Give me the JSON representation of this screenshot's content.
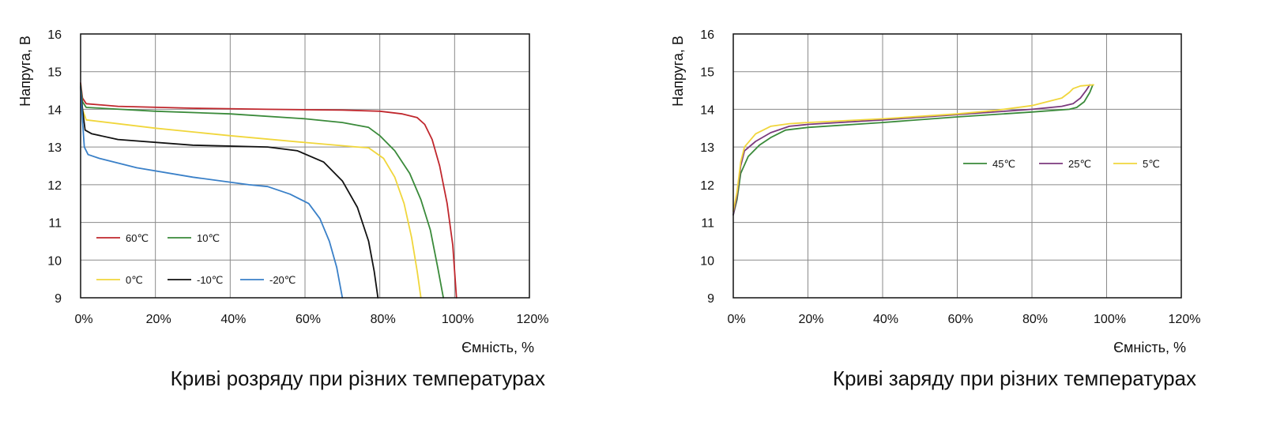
{
  "chart_data": [
    {
      "type": "line",
      "title": "Криві розряду при різних температурах",
      "xlabel": "Ємність, %",
      "ylabel": "Напруга, В",
      "xlim": [
        0,
        120
      ],
      "ylim": [
        9,
        16
      ],
      "x_ticks": [
        "0%",
        "20%",
        "40%",
        "60%",
        "80%",
        "100%",
        "120%"
      ],
      "y_ticks": [
        "9",
        "10",
        "11",
        "12",
        "13",
        "14",
        "15",
        "16"
      ],
      "grid": true,
      "legend": "bottom-left",
      "series": [
        {
          "name": "60℃",
          "color": "#c0272d",
          "points": [
            [
              0,
              14.7
            ],
            [
              0.5,
              14.3
            ],
            [
              1.5,
              14.15
            ],
            [
              10,
              14.08
            ],
            [
              30,
              14.03
            ],
            [
              50,
              14.0
            ],
            [
              70,
              13.98
            ],
            [
              80,
              13.95
            ],
            [
              86,
              13.88
            ],
            [
              90,
              13.78
            ],
            [
              92,
              13.6
            ],
            [
              94,
              13.2
            ],
            [
              96,
              12.5
            ],
            [
              98,
              11.5
            ],
            [
              99.5,
              10.4
            ],
            [
              100.5,
              9.0
            ]
          ]
        },
        {
          "name": "10℃",
          "color": "#3a8a3a",
          "points": [
            [
              0,
              14.65
            ],
            [
              0.5,
              14.2
            ],
            [
              1.5,
              14.05
            ],
            [
              20,
              13.95
            ],
            [
              40,
              13.88
            ],
            [
              60,
              13.75
            ],
            [
              70,
              13.65
            ],
            [
              77,
              13.52
            ],
            [
              80,
              13.3
            ],
            [
              84,
              12.9
            ],
            [
              88,
              12.3
            ],
            [
              91,
              11.6
            ],
            [
              93.5,
              10.8
            ],
            [
              95.5,
              9.8
            ],
            [
              97,
              9.0
            ]
          ]
        },
        {
          "name": "0℃",
          "color": "#f0d63c",
          "points": [
            [
              0,
              14.6
            ],
            [
              0.5,
              14.0
            ],
            [
              1.5,
              13.72
            ],
            [
              20,
              13.5
            ],
            [
              40,
              13.3
            ],
            [
              60,
              13.12
            ],
            [
              74,
              13.0
            ],
            [
              77,
              12.98
            ],
            [
              81,
              12.7
            ],
            [
              84,
              12.2
            ],
            [
              86.5,
              11.5
            ],
            [
              88.5,
              10.6
            ],
            [
              90,
              9.7
            ],
            [
              91,
              9.0
            ]
          ]
        },
        {
          "name": "-10℃",
          "color": "#111111",
          "points": [
            [
              0,
              14.6
            ],
            [
              0.5,
              14.0
            ],
            [
              1.2,
              13.45
            ],
            [
              3,
              13.35
            ],
            [
              10,
              13.2
            ],
            [
              30,
              13.05
            ],
            [
              50,
              13.0
            ],
            [
              58,
              12.9
            ],
            [
              65,
              12.6
            ],
            [
              70,
              12.1
            ],
            [
              74,
              11.4
            ],
            [
              77,
              10.5
            ],
            [
              78.5,
              9.7
            ],
            [
              79.5,
              9.0
            ]
          ]
        },
        {
          "name": "-20℃",
          "color": "#3a80c8",
          "points": [
            [
              0,
              14.6
            ],
            [
              0.5,
              13.7
            ],
            [
              1,
              13.0
            ],
            [
              2,
              12.8
            ],
            [
              5,
              12.7
            ],
            [
              15,
              12.45
            ],
            [
              30,
              12.2
            ],
            [
              45,
              12.0
            ],
            [
              50,
              11.95
            ],
            [
              56,
              11.75
            ],
            [
              61,
              11.5
            ],
            [
              64,
              11.1
            ],
            [
              66.5,
              10.5
            ],
            [
              68.5,
              9.8
            ],
            [
              70,
              9.0
            ]
          ]
        }
      ]
    },
    {
      "type": "line",
      "title": "Криві заряду при різних температурах",
      "xlabel": "Ємність, %",
      "ylabel": "Напруга, В",
      "xlim": [
        0,
        120
      ],
      "ylim": [
        9,
        16
      ],
      "x_ticks": [
        "0%",
        "20%",
        "40%",
        "60%",
        "80%",
        "100%",
        "120%"
      ],
      "y_ticks": [
        "9",
        "10",
        "11",
        "12",
        "13",
        "14",
        "15",
        "16"
      ],
      "grid": true,
      "legend": "center-right",
      "series": [
        {
          "name": "45℃",
          "color": "#3a8a3a",
          "points": [
            [
              0,
              11.2
            ],
            [
              1,
              11.6
            ],
            [
              2,
              12.3
            ],
            [
              4,
              12.75
            ],
            [
              7,
              13.05
            ],
            [
              10,
              13.25
            ],
            [
              14,
              13.45
            ],
            [
              20,
              13.52
            ],
            [
              40,
              13.65
            ],
            [
              60,
              13.8
            ],
            [
              80,
              13.93
            ],
            [
              90,
              14.0
            ],
            [
              92,
              14.05
            ],
            [
              94,
              14.2
            ],
            [
              95.5,
              14.45
            ],
            [
              96.3,
              14.65
            ]
          ]
        },
        {
          "name": "25℃",
          "color": "#7b3a7e",
          "points": [
            [
              0,
              11.2
            ],
            [
              1,
              11.7
            ],
            [
              2,
              12.5
            ],
            [
              3,
              12.9
            ],
            [
              6,
              13.15
            ],
            [
              10,
              13.38
            ],
            [
              15,
              13.55
            ],
            [
              20,
              13.6
            ],
            [
              40,
              13.72
            ],
            [
              60,
              13.86
            ],
            [
              80,
              14.0
            ],
            [
              88,
              14.08
            ],
            [
              91,
              14.15
            ],
            [
              93,
              14.3
            ],
            [
              94.5,
              14.5
            ],
            [
              95.5,
              14.65
            ]
          ]
        },
        {
          "name": "5℃",
          "color": "#f0d63c",
          "points": [
            [
              0,
              11.3
            ],
            [
              1,
              11.8
            ],
            [
              2,
              12.6
            ],
            [
              3,
              13.0
            ],
            [
              6,
              13.35
            ],
            [
              10,
              13.55
            ],
            [
              15,
              13.62
            ],
            [
              20,
              13.65
            ],
            [
              40,
              13.75
            ],
            [
              60,
              13.88
            ],
            [
              70,
              13.97
            ],
            [
              80,
              14.1
            ],
            [
              88,
              14.3
            ],
            [
              90,
              14.45
            ],
            [
              91,
              14.55
            ],
            [
              93,
              14.62
            ],
            [
              96.5,
              14.65
            ]
          ]
        }
      ]
    }
  ]
}
